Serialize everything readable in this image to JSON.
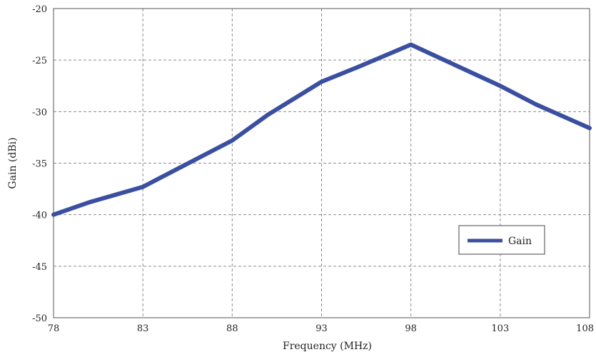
{
  "chart_data": {
    "type": "line",
    "xlabel": "Frequency (MHz)",
    "ylabel": "Gain (dBi)",
    "xlim": [
      78,
      108
    ],
    "ylim": [
      -50,
      -20
    ],
    "xticks": [
      78,
      83,
      88,
      93,
      98,
      103,
      108
    ],
    "yticks": [
      -20,
      -25,
      -30,
      -35,
      -40,
      -45,
      -50
    ],
    "grid": true,
    "legend_position": "bottom-right",
    "series": [
      {
        "name": "Gain",
        "color": "#3a4fa0",
        "x": [
          78,
          80,
          83,
          85,
          88,
          90,
          93,
          95,
          98,
          100,
          103,
          105,
          108
        ],
        "y": [
          -40.0,
          -38.8,
          -37.3,
          -35.5,
          -32.8,
          -30.3,
          -27.1,
          -25.7,
          -23.5,
          -25.1,
          -27.5,
          -29.3,
          -31.6
        ]
      }
    ]
  }
}
